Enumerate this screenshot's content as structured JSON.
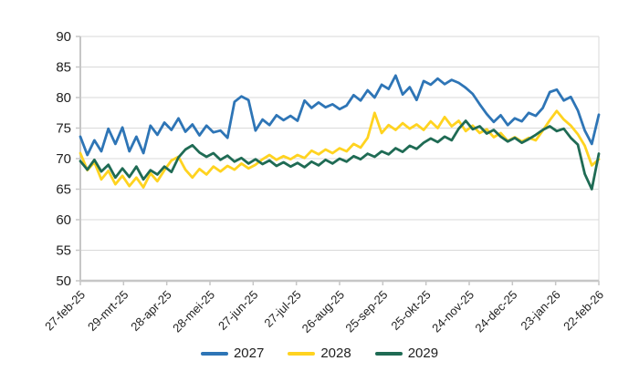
{
  "chart_data": {
    "type": "line",
    "title": "",
    "xlabel": "",
    "ylabel": "",
    "ylim": [
      50,
      90
    ],
    "y_ticks": [
      50,
      55,
      60,
      65,
      70,
      75,
      80,
      85,
      90
    ],
    "x_tick_labels": [
      "27-feb-25",
      "29-mrt-25",
      "28-apr-25",
      "28-mei-25",
      "27-jun-25",
      "27-jul-25",
      "26-aug-25",
      "25-sep-25",
      "25-okt-25",
      "24-nov-25",
      "24-dec-25",
      "23-jan-26",
      "22-feb-26"
    ],
    "grid": "horizontal",
    "legend_position": "bottom",
    "series": [
      {
        "name": "2027",
        "color": "#2E75B6",
        "values": [
          73.6,
          70.6,
          73.0,
          71.2,
          74.9,
          72.4,
          75.1,
          71.2,
          73.6,
          70.9,
          75.4,
          73.9,
          75.9,
          74.7,
          76.6,
          74.4,
          75.6,
          73.8,
          75.4,
          74.3,
          74.6,
          73.4,
          79.3,
          80.2,
          79.6,
          74.6,
          76.4,
          75.5,
          77.1,
          76.3,
          77.0,
          76.2,
          79.5,
          78.3,
          79.2,
          78.4,
          78.9,
          78.1,
          78.7,
          80.4,
          79.5,
          81.2,
          80.0,
          82.1,
          81.4,
          83.6,
          80.5,
          81.7,
          79.6,
          82.7,
          82.1,
          83.1,
          82.2,
          82.9,
          82.4,
          81.6,
          80.6,
          78.9,
          77.3,
          76.0,
          77.1,
          75.5,
          76.6,
          76.1,
          77.5,
          77.0,
          78.3,
          80.9,
          81.3,
          79.5,
          80.1,
          77.9,
          74.6,
          72.4,
          77.2
        ]
      },
      {
        "name": "2028",
        "color": "#FFD320",
        "values": [
          70.9,
          68.1,
          69.4,
          66.6,
          68.0,
          65.8,
          67.2,
          65.5,
          66.9,
          65.3,
          67.6,
          66.3,
          68.1,
          69.7,
          70.3,
          68.2,
          66.9,
          68.3,
          67.4,
          68.7,
          67.9,
          68.8,
          68.2,
          69.2,
          68.4,
          69.0,
          69.9,
          70.6,
          69.8,
          70.4,
          69.9,
          70.6,
          70.1,
          71.3,
          70.7,
          71.5,
          70.9,
          71.7,
          71.2,
          72.4,
          71.8,
          73.4,
          77.5,
          74.2,
          75.5,
          74.7,
          75.8,
          74.9,
          75.6,
          74.7,
          76.1,
          75.0,
          76.8,
          75.3,
          76.2,
          74.5,
          75.4,
          74.2,
          74.8,
          73.5,
          74.2,
          72.9,
          73.5,
          72.8,
          73.4,
          73.0,
          74.6,
          76.3,
          77.8,
          76.4,
          75.4,
          74.0,
          72.1,
          68.9,
          69.9
        ]
      },
      {
        "name": "2029",
        "color": "#1F6B54",
        "values": [
          69.6,
          68.2,
          69.8,
          67.9,
          69.0,
          66.9,
          68.4,
          67.0,
          68.7,
          66.6,
          68.1,
          67.4,
          68.7,
          67.8,
          70.2,
          71.5,
          72.2,
          71.0,
          70.3,
          70.9,
          69.8,
          70.5,
          69.5,
          70.1,
          69.2,
          69.9,
          69.1,
          69.7,
          68.8,
          69.4,
          68.7,
          69.3,
          68.6,
          69.5,
          68.9,
          69.8,
          69.2,
          70.0,
          69.5,
          70.4,
          69.9,
          70.8,
          70.3,
          71.2,
          70.7,
          71.7,
          71.1,
          72.1,
          71.6,
          72.6,
          73.3,
          72.7,
          73.6,
          73.0,
          74.9,
          76.2,
          74.8,
          75.3,
          74.1,
          74.7,
          73.6,
          72.8,
          73.4,
          72.6,
          73.2,
          73.9,
          74.7,
          75.3,
          74.5,
          74.9,
          73.4,
          72.3,
          67.5,
          65.0,
          70.8
        ]
      }
    ]
  },
  "style": {
    "grid_color": "#D9D9D9",
    "axis_color": "#C6C6C6",
    "text_color": "#1F1F1F"
  }
}
